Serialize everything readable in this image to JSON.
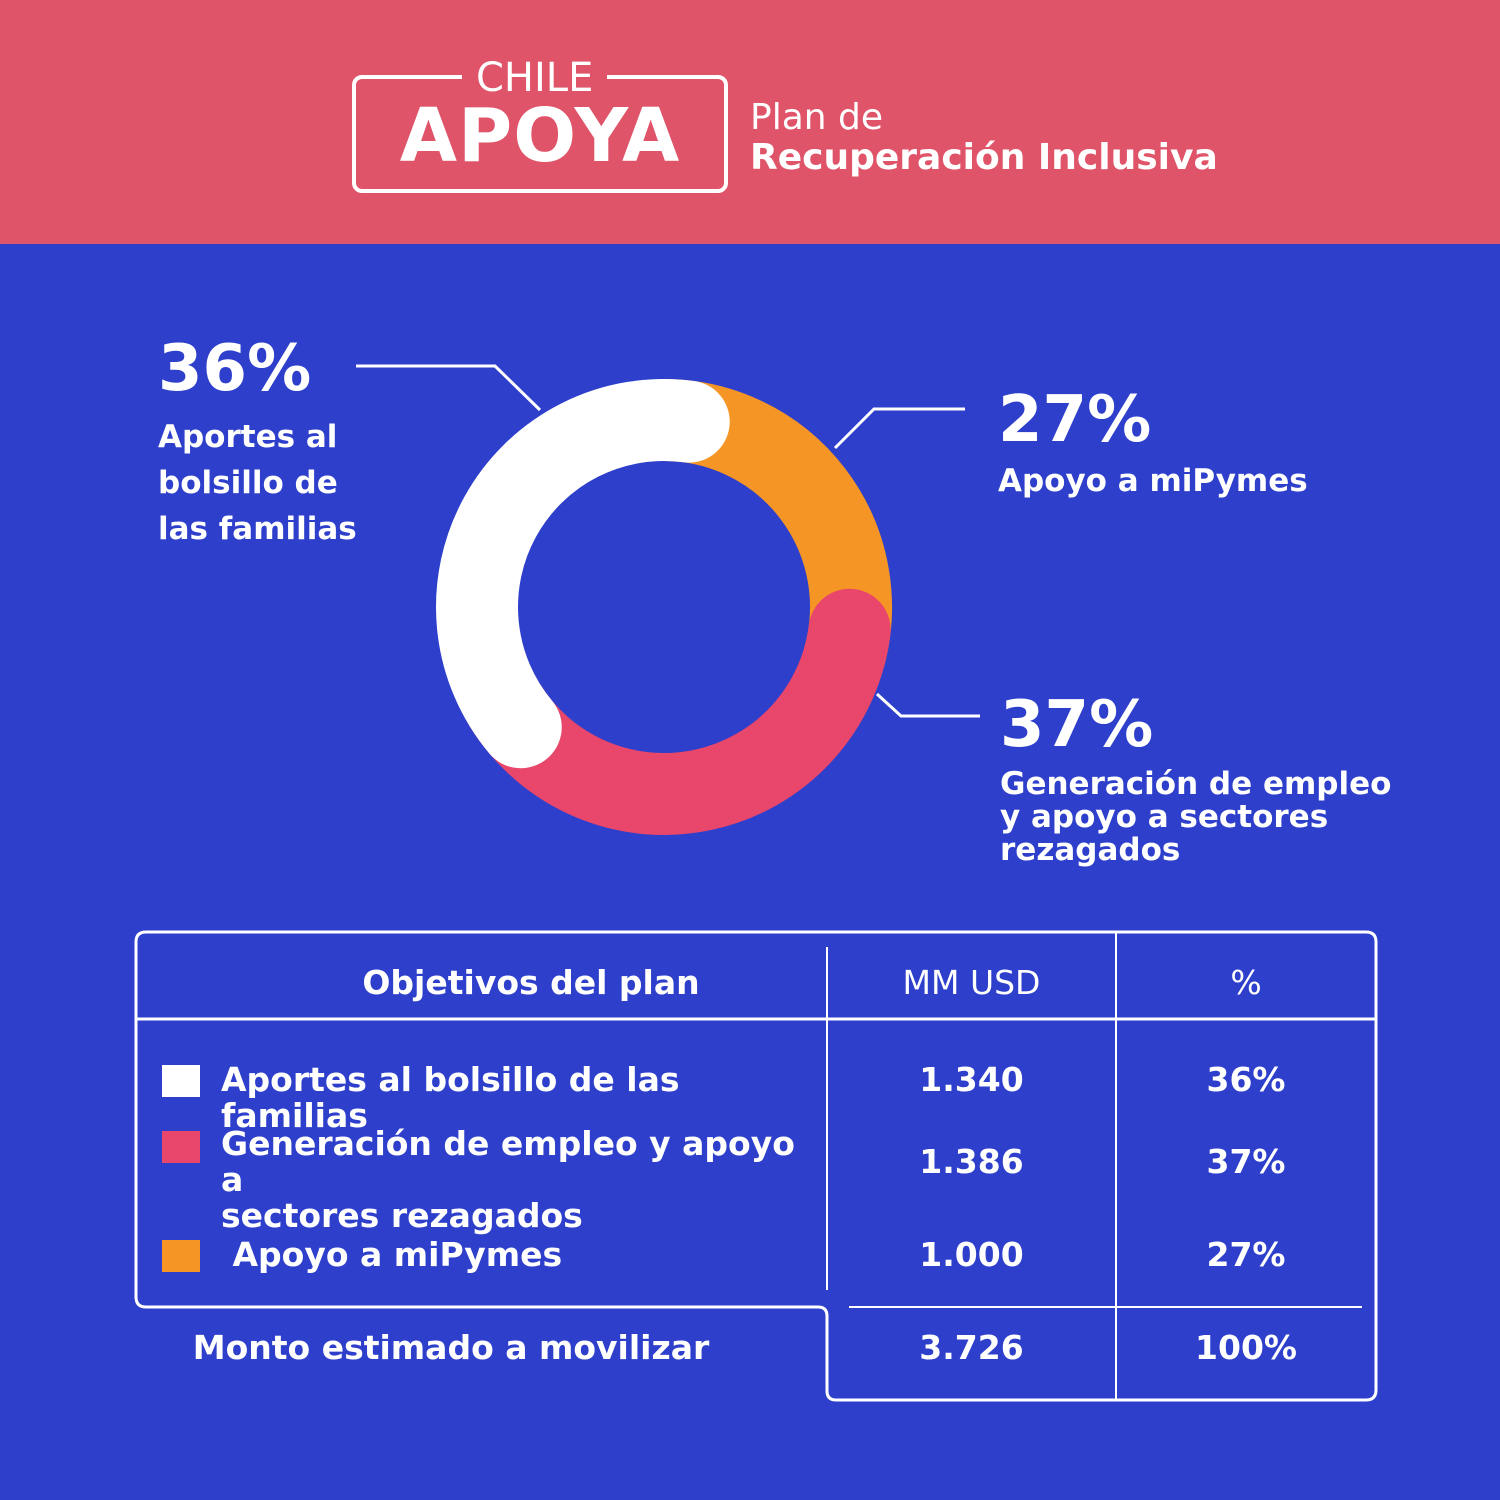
{
  "header": {
    "logo_top": "CHILE",
    "logo_main": "APOYA",
    "plan_line1": "Plan de",
    "plan_line2": "Recuperación Inclusiva"
  },
  "colors": {
    "background": "#2d3fcb",
    "header": "#e0546a",
    "familias": "#ffffff",
    "empleo": "#e8466a",
    "mipymes": "#f59526"
  },
  "chart_data": {
    "type": "pie",
    "variant": "donut",
    "categories": [
      "Aportes al bolsillo de las familias",
      "Apoyo a miPymes",
      "Generación de empleo y apoyo a sectores rezagados"
    ],
    "values": [
      36,
      27,
      37
    ],
    "unit": "%",
    "series_colors": [
      "#ffffff",
      "#f59526",
      "#e8466a"
    ],
    "labels": {
      "familias": {
        "pct": "36%",
        "lines": [
          "Aportes al",
          "bolsillo de",
          "las familias"
        ]
      },
      "mipymes": {
        "pct": "27%",
        "lines": [
          "Apoyo a miPymes"
        ]
      },
      "empleo": {
        "pct": "37%",
        "lines": [
          "Generación de empleo",
          "y apoyo a sectores",
          "rezagados"
        ]
      }
    }
  },
  "table": {
    "headers": {
      "objetivos": "Objetivos del plan",
      "mm_usd": "MM USD",
      "pct": "%"
    },
    "rows": [
      {
        "label_lines": [
          "Aportes al bolsillo de las familias"
        ],
        "mm_usd": "1.340",
        "pct": "36%",
        "color": "#ffffff"
      },
      {
        "label_lines": [
          "Generación de empleo y apoyo a",
          "sectores rezagados"
        ],
        "mm_usd": "1.386",
        "pct": "37%",
        "color": "#e8466a"
      },
      {
        "label_lines": [
          " Apoyo a miPymes"
        ],
        "mm_usd": "1.000",
        "pct": "27%",
        "color": "#f59526"
      }
    ],
    "total": {
      "label": "Monto estimado a movilizar",
      "mm_usd": "3.726",
      "pct": "100%"
    }
  }
}
